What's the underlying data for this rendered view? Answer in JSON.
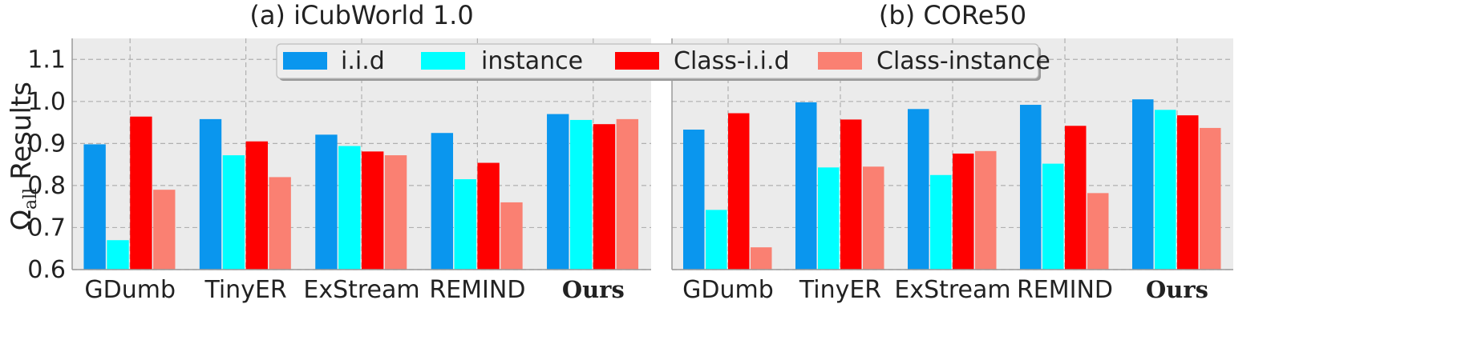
{
  "chart_data": [
    {
      "type": "bar",
      "title": "(a) iCubWorld 1.0",
      "ylabel": "Ω_all Results",
      "ylabel_symbol": "Ω",
      "ylabel_subscript": "all",
      "ylabel_word": "Results",
      "ylim": [
        0.6,
        1.15
      ],
      "yticks": [
        "0.6",
        "0.7",
        "0.8",
        "0.9",
        "1.0",
        "1.1"
      ],
      "categories": [
        "GDumb",
        "TinyER",
        "ExStream",
        "REMIND",
        "Ours"
      ],
      "series": [
        {
          "name": "i.i.d",
          "color": "#0a96ee",
          "values": [
            0.898,
            0.958,
            0.921,
            0.925,
            0.97
          ]
        },
        {
          "name": "instance",
          "color": "#00ffff",
          "values": [
            0.67,
            0.872,
            0.894,
            0.815,
            0.956
          ]
        },
        {
          "name": "Class-i.i.d",
          "color": "#ff0000",
          "values": [
            0.964,
            0.905,
            0.881,
            0.854,
            0.946
          ]
        },
        {
          "name": "Class-instance",
          "color": "#fa8072",
          "values": [
            0.79,
            0.82,
            0.872,
            0.76,
            0.958
          ]
        }
      ]
    },
    {
      "type": "bar",
      "title": "(b) CORe50",
      "ylim": [
        0.6,
        1.15
      ],
      "categories": [
        "GDumb",
        "TinyER",
        "ExStream",
        "REMIND",
        "Ours"
      ],
      "series": [
        {
          "name": "i.i.d",
          "color": "#0a96ee",
          "values": [
            0.933,
            0.998,
            0.982,
            0.992,
            1.005
          ]
        },
        {
          "name": "instance",
          "color": "#00ffff",
          "values": [
            0.742,
            0.843,
            0.825,
            0.852,
            0.98
          ]
        },
        {
          "name": "Class-i.i.d",
          "color": "#ff0000",
          "values": [
            0.972,
            0.957,
            0.876,
            0.942,
            0.967
          ]
        },
        {
          "name": "Class-instance",
          "color": "#fa8072",
          "values": [
            0.653,
            0.845,
            0.882,
            0.782,
            0.937
          ]
        }
      ]
    }
  ],
  "legend": {
    "entries": [
      "i.i.d",
      "instance",
      "Class-i.i.d",
      "Class-instance"
    ],
    "colors": [
      "#0a96ee",
      "#00ffff",
      "#ff0000",
      "#fa8072"
    ],
    "placement": "top-center"
  },
  "highlight_category": "Ours"
}
